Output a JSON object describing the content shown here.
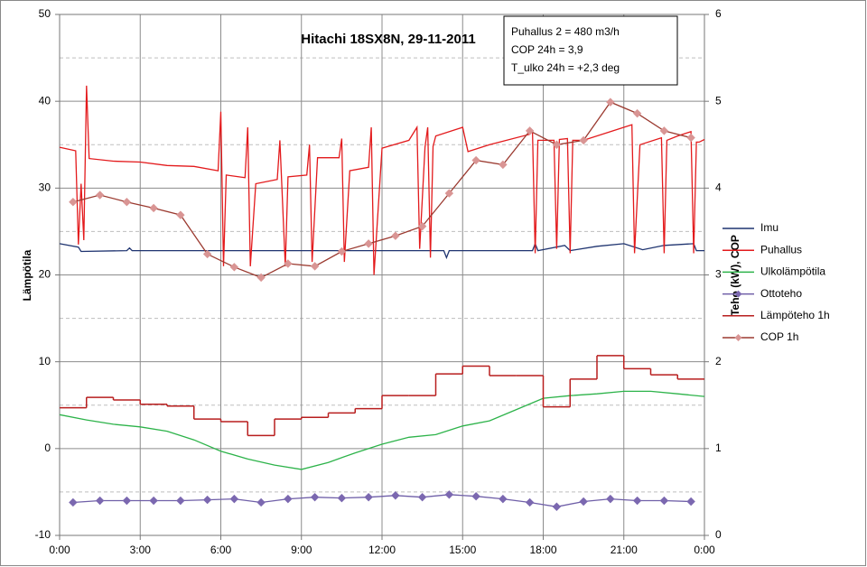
{
  "chart_data": {
    "type": "line",
    "title": "Hitachi 18SX8N, 29-11-2011",
    "annotations": [
      "Puhallus 2 = 480 m3/h",
      "COP 24h = 3,9",
      "T_ulko 24h = +2,3 deg"
    ],
    "ylabel": "Lämpötila",
    "y2label": "Teho (kW), COP",
    "xlim": [
      0,
      24
    ],
    "xticks": [
      {
        "value": 0,
        "label": "0:00"
      },
      {
        "value": 3,
        "label": "3:00"
      },
      {
        "value": 6,
        "label": "6:00"
      },
      {
        "value": 9,
        "label": "9:00"
      },
      {
        "value": 12,
        "label": "12:00"
      },
      {
        "value": 15,
        "label": "15:00"
      },
      {
        "value": 18,
        "label": "18:00"
      },
      {
        "value": 21,
        "label": "21:00"
      },
      {
        "value": 24,
        "label": "0:00"
      }
    ],
    "ylim": [
      -10,
      50
    ],
    "yticks": [
      -10,
      0,
      10,
      20,
      30,
      40,
      50
    ],
    "y2lim": [
      0,
      6
    ],
    "y2ticks": [
      0,
      1,
      2,
      3,
      4,
      5,
      6
    ],
    "grid": true,
    "minor_grid": true,
    "legend": "right",
    "series": [
      {
        "name": "Imu",
        "color": "#1f3470",
        "x": [
          0,
          0.7,
          0.8,
          2.5,
          2.6,
          2.7,
          14.3,
          14.4,
          14.5,
          17.6,
          17.7,
          17.8,
          18.8,
          19,
          20,
          21,
          21.7,
          22.5,
          23.6,
          23.7,
          24
        ],
        "values": [
          23.6,
          23.2,
          22.7,
          22.8,
          23.1,
          22.8,
          22.8,
          22.0,
          22.8,
          22.8,
          23.6,
          22.8,
          23.4,
          22.8,
          23.3,
          23.6,
          22.9,
          23.4,
          23.6,
          22.8,
          22.8
        ]
      },
      {
        "name": "Puhallus",
        "color": "#e31a1c",
        "x": [
          0,
          0.6,
          0.7,
          0.8,
          0.9,
          1.0,
          1.1,
          2,
          3,
          4,
          5,
          5.9,
          6.0,
          6.1,
          6.2,
          6.9,
          7.0,
          7.1,
          7.3,
          8.1,
          8.2,
          8.4,
          8.5,
          9.2,
          9.3,
          9.4,
          9.6,
          10.4,
          10.5,
          10.6,
          10.8,
          11.5,
          11.6,
          11.7,
          12,
          13,
          13.3,
          13.4,
          13.6,
          13.7,
          13.8,
          13.9,
          14,
          15,
          15.2,
          16,
          17.5,
          17.6,
          17.7,
          17.8,
          18.4,
          18.5,
          18.6,
          18.9,
          19,
          19.1,
          19.5,
          21,
          21.3,
          21.4,
          21.6,
          22.4,
          22.5,
          22.6,
          23,
          23.5,
          23.6,
          23.7,
          23.8,
          24
        ],
        "values": [
          34.7,
          34.3,
          23.5,
          30.5,
          24,
          41.8,
          33.4,
          33.1,
          33,
          32.6,
          32.5,
          32,
          38.8,
          21,
          31.5,
          31.2,
          37,
          21,
          30.5,
          31,
          35.5,
          21,
          31.3,
          31.5,
          35,
          21.5,
          33.5,
          33.5,
          35.7,
          21.5,
          32,
          32.4,
          37,
          20,
          34.6,
          35.5,
          37,
          23,
          34.7,
          37,
          22,
          34.8,
          36,
          37,
          34.2,
          35,
          36.2,
          36.5,
          22.5,
          35.5,
          35.5,
          23,
          35.6,
          35.7,
          22.5,
          35.5,
          35.5,
          37,
          37.3,
          22.5,
          35,
          35.8,
          22.5,
          35.5,
          36,
          36.5,
          22.5,
          35.3,
          35.3,
          35.6
        ]
      },
      {
        "name": "Ulkolämpötila",
        "color": "#2db34a",
        "x": [
          0,
          1,
          2,
          3,
          4,
          5,
          6,
          7,
          8,
          9,
          10,
          11,
          12,
          13,
          14,
          15,
          16,
          17,
          18,
          19,
          20,
          21,
          22,
          23,
          24
        ],
        "values": [
          3.9,
          3.3,
          2.8,
          2.5,
          2.0,
          1.0,
          -0.3,
          -1.2,
          -1.9,
          -2.4,
          -1.6,
          -0.5,
          0.5,
          1.3,
          1.6,
          2.6,
          3.2,
          4.5,
          5.8,
          6.1,
          6.3,
          6.6,
          6.6,
          6.3,
          6.0
        ]
      },
      {
        "name": "Ottoteho",
        "color": "#6f5fa8",
        "axis": "y2",
        "marker": "#7b68b0",
        "x": [
          0.5,
          1.5,
          2.5,
          3.5,
          4.5,
          5.5,
          6.5,
          7.5,
          8.5,
          9.5,
          10.5,
          11.5,
          12.5,
          13.5,
          14.5,
          15.5,
          16.5,
          17.5,
          18.5,
          19.5,
          20.5,
          21.5,
          22.5,
          23.5
        ],
        "values": [
          0.38,
          0.4,
          0.4,
          0.4,
          0.4,
          0.41,
          0.42,
          0.38,
          0.42,
          0.44,
          0.43,
          0.44,
          0.46,
          0.44,
          0.47,
          0.45,
          0.42,
          0.38,
          0.33,
          0.39,
          0.42,
          0.4,
          0.4,
          0.39
        ]
      },
      {
        "name": "Lämpöteho 1h",
        "color": "#b81e1e",
        "axis": "y2",
        "step": true,
        "x": [
          0,
          1,
          2,
          3,
          4,
          5,
          6,
          7,
          8,
          9,
          10,
          11,
          12,
          13,
          14,
          15,
          16,
          17,
          18,
          19,
          20,
          21,
          22,
          23
        ],
        "values": [
          1.47,
          1.59,
          1.56,
          1.51,
          1.49,
          1.34,
          1.31,
          1.15,
          1.34,
          1.36,
          1.41,
          1.46,
          1.61,
          1.61,
          1.86,
          1.95,
          1.84,
          1.84,
          1.48,
          1.8,
          2.07,
          1.92,
          1.85,
          1.8
        ]
      },
      {
        "name": "COP 1h",
        "color": "#9b3a30",
        "axis": "y2",
        "marker": "#d99594",
        "x": [
          0.5,
          1.5,
          2.5,
          3.5,
          4.5,
          5.5,
          6.5,
          7.5,
          8.5,
          9.5,
          10.5,
          11.5,
          12.5,
          13.5,
          14.5,
          15.5,
          16.5,
          17.5,
          18.5,
          19.5,
          20.5,
          21.5,
          22.5,
          23.5
        ],
        "values": [
          3.84,
          3.92,
          3.84,
          3.77,
          3.69,
          3.24,
          3.09,
          2.97,
          3.13,
          3.1,
          3.27,
          3.36,
          3.45,
          3.56,
          3.94,
          4.32,
          4.27,
          4.66,
          4.5,
          4.55,
          4.99,
          4.86,
          4.66,
          4.58
        ]
      }
    ]
  }
}
